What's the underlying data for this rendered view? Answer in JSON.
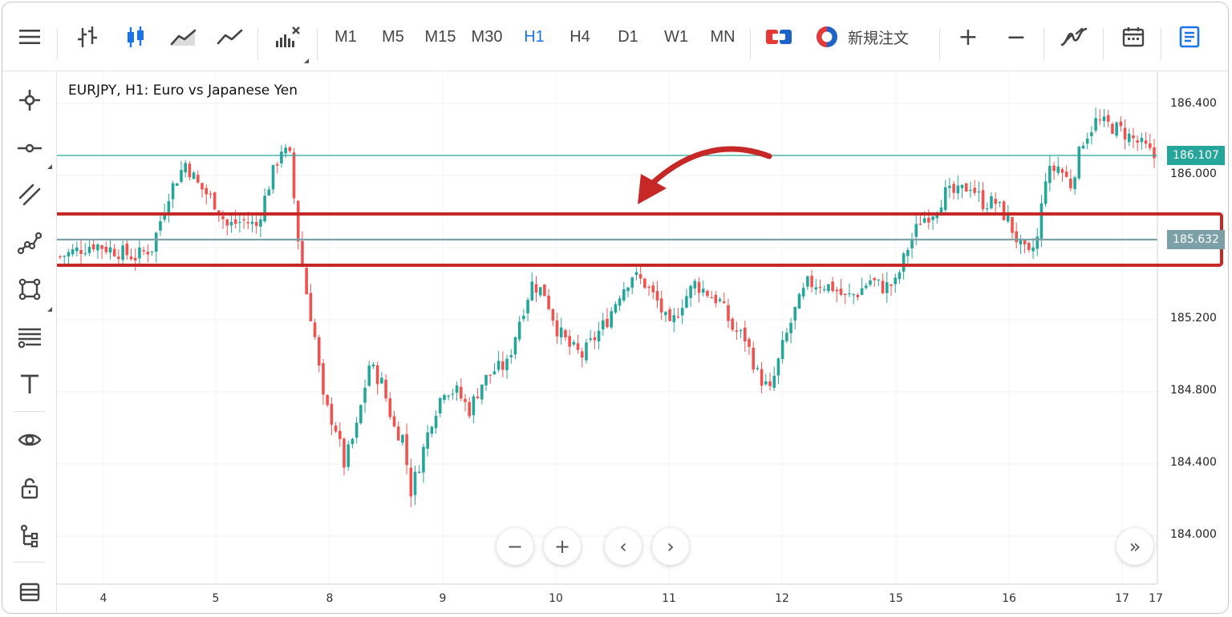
{
  "toolbar": {
    "menu_icon": "menu-icon",
    "chart_types": [
      "bar-chart-icon",
      "candlestick-icon",
      "area-chart-icon",
      "line-chart-icon"
    ],
    "indicators_icon": "indicators-icon",
    "timeframes": [
      "M1",
      "M5",
      "M15",
      "M30",
      "H1",
      "H4",
      "D1",
      "W1",
      "MN"
    ],
    "active_timeframe": "H1",
    "one_click_icon": "one-click-trading-icon",
    "new_order_label": "新規注文",
    "zoom_in": "+",
    "zoom_out": "−",
    "autoscroll_icon": "auto-scroll-icon",
    "calendar_icon": "calendar-icon",
    "journal_icon": "journal-icon"
  },
  "leftbar": {
    "tools": [
      "crosshair-icon",
      "horizontal-line-icon",
      "trend-lines-icon",
      "polyline-icon",
      "shapes-icon",
      "fibonacci-icon",
      "text-icon",
      "eye-icon",
      "lock-icon",
      "object-tree-icon",
      "layers-icon"
    ]
  },
  "chart": {
    "title": "EURJPY, H1: Euro vs Japanese Yen",
    "price_axis": [
      "186.400",
      "186.000",
      "185.200",
      "184.800",
      "184.400",
      "184.000"
    ],
    "current_price": "186.107",
    "line_price": "185.632",
    "time_axis": [
      "4",
      "5",
      "8",
      "9",
      "10",
      "11",
      "12",
      "15",
      "16",
      "17",
      "17"
    ],
    "nav": {
      "zoom_out": "−",
      "zoom_in": "+",
      "prev": "‹",
      "next": "›",
      "end": "»"
    },
    "colors": {
      "up": "#26a69a",
      "down": "#ef5350",
      "current_line": "#26a69a",
      "hline": "#7ba0a8",
      "highlight": "#c62828"
    }
  },
  "chart_data": {
    "type": "candlestick",
    "title": "EURJPY, H1: Euro vs Japanese Yen",
    "xlabel": "",
    "ylabel": "",
    "ylim": [
      183.8,
      186.6
    ],
    "x_ticks": [
      "4",
      "5",
      "8",
      "9",
      "10",
      "11",
      "12",
      "15",
      "16",
      "17",
      "17"
    ],
    "y_ticks": [
      184.0,
      184.4,
      184.8,
      185.2,
      186.0,
      186.4
    ],
    "horizontal_lines": [
      {
        "value": 186.107,
        "label": "186.107"
      },
      {
        "value": 185.632,
        "label": "185.632"
      }
    ],
    "anchors": [
      {
        "i": 0,
        "p": 185.55
      },
      {
        "i": 8,
        "p": 185.62
      },
      {
        "i": 18,
        "p": 185.55
      },
      {
        "i": 22,
        "p": 185.6
      },
      {
        "i": 26,
        "p": 185.9
      },
      {
        "i": 30,
        "p": 186.07
      },
      {
        "i": 33,
        "p": 185.95
      },
      {
        "i": 37,
        "p": 185.85
      },
      {
        "i": 40,
        "p": 185.72
      },
      {
        "i": 44,
        "p": 185.75
      },
      {
        "i": 47,
        "p": 185.72
      },
      {
        "i": 50,
        "p": 185.95
      },
      {
        "i": 53,
        "p": 186.15
      },
      {
        "i": 55,
        "p": 186.1
      },
      {
        "i": 57,
        "p": 185.65
      },
      {
        "i": 59,
        "p": 185.35
      },
      {
        "i": 61,
        "p": 185.1
      },
      {
        "i": 63,
        "p": 184.75
      },
      {
        "i": 66,
        "p": 184.6
      },
      {
        "i": 68,
        "p": 184.4
      },
      {
        "i": 71,
        "p": 184.6
      },
      {
        "i": 74,
        "p": 184.95
      },
      {
        "i": 77,
        "p": 184.85
      },
      {
        "i": 80,
        "p": 184.6
      },
      {
        "i": 82,
        "p": 184.55
      },
      {
        "i": 84,
        "p": 184.25
      },
      {
        "i": 86,
        "p": 184.4
      },
      {
        "i": 89,
        "p": 184.65
      },
      {
        "i": 92,
        "p": 184.82
      },
      {
        "i": 95,
        "p": 184.8
      },
      {
        "i": 98,
        "p": 184.7
      },
      {
        "i": 101,
        "p": 184.85
      },
      {
        "i": 104,
        "p": 184.92
      },
      {
        "i": 107,
        "p": 184.95
      },
      {
        "i": 110,
        "p": 185.2
      },
      {
        "i": 113,
        "p": 185.4
      },
      {
        "i": 116,
        "p": 185.35
      },
      {
        "i": 119,
        "p": 185.15
      },
      {
        "i": 122,
        "p": 185.05
      },
      {
        "i": 125,
        "p": 185.0
      },
      {
        "i": 128,
        "p": 185.1
      },
      {
        "i": 131,
        "p": 185.2
      },
      {
        "i": 134,
        "p": 185.35
      },
      {
        "i": 137,
        "p": 185.45
      },
      {
        "i": 140,
        "p": 185.4
      },
      {
        "i": 143,
        "p": 185.3
      },
      {
        "i": 146,
        "p": 185.15
      },
      {
        "i": 149,
        "p": 185.3
      },
      {
        "i": 152,
        "p": 185.4
      },
      {
        "i": 155,
        "p": 185.35
      },
      {
        "i": 158,
        "p": 185.3
      },
      {
        "i": 161,
        "p": 185.15
      },
      {
        "i": 164,
        "p": 185.1
      },
      {
        "i": 167,
        "p": 184.9
      },
      {
        "i": 170,
        "p": 184.8
      },
      {
        "i": 173,
        "p": 185.05
      },
      {
        "i": 176,
        "p": 185.25
      },
      {
        "i": 179,
        "p": 185.4
      },
      {
        "i": 182,
        "p": 185.4
      },
      {
        "i": 185,
        "p": 185.38
      },
      {
        "i": 188,
        "p": 185.32
      },
      {
        "i": 191,
        "p": 185.35
      },
      {
        "i": 194,
        "p": 185.42
      },
      {
        "i": 197,
        "p": 185.38
      },
      {
        "i": 200,
        "p": 185.4
      },
      {
        "i": 203,
        "p": 185.6
      },
      {
        "i": 206,
        "p": 185.75
      },
      {
        "i": 209,
        "p": 185.8
      },
      {
        "i": 212,
        "p": 185.9
      },
      {
        "i": 215,
        "p": 185.9
      },
      {
        "i": 218,
        "p": 185.95
      },
      {
        "i": 221,
        "p": 185.85
      },
      {
        "i": 224,
        "p": 185.85
      },
      {
        "i": 227,
        "p": 185.75
      },
      {
        "i": 230,
        "p": 185.6
      },
      {
        "i": 232,
        "p": 185.55
      },
      {
        "i": 234,
        "p": 185.65
      },
      {
        "i": 236,
        "p": 186.0
      },
      {
        "i": 239,
        "p": 186.05
      },
      {
        "i": 242,
        "p": 185.95
      },
      {
        "i": 245,
        "p": 186.2
      },
      {
        "i": 248,
        "p": 186.3
      },
      {
        "i": 251,
        "p": 186.28
      },
      {
        "i": 254,
        "p": 186.25
      },
      {
        "i": 257,
        "p": 186.2
      },
      {
        "i": 260,
        "p": 186.15
      },
      {
        "i": 262,
        "p": 186.1
      }
    ],
    "candle_count": 263
  }
}
